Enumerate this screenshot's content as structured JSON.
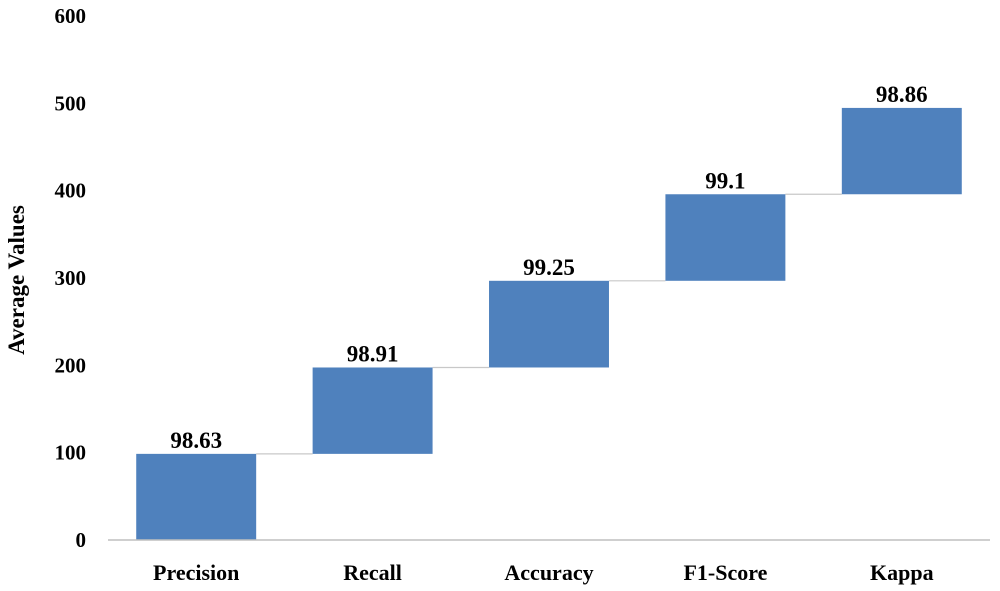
{
  "chart_data": {
    "type": "bar",
    "subtype": "waterfall",
    "title": "",
    "xlabel": "",
    "ylabel": "Average Values",
    "ylim": [
      0,
      600
    ],
    "yticks": [
      0,
      100,
      200,
      300,
      400,
      500,
      600
    ],
    "grid": false,
    "legend": "none",
    "categories": [
      "Precision",
      "Recall",
      "Accuracy",
      "F1-Score",
      "Kappa"
    ],
    "values": [
      98.63,
      98.91,
      99.25,
      99.1,
      98.86
    ],
    "data_labels": [
      "98.63",
      "98.91",
      "99.25",
      "99.1",
      "98.86"
    ],
    "bar_color": "#4f81bd",
    "connector_color": "#c8c8c8"
  }
}
